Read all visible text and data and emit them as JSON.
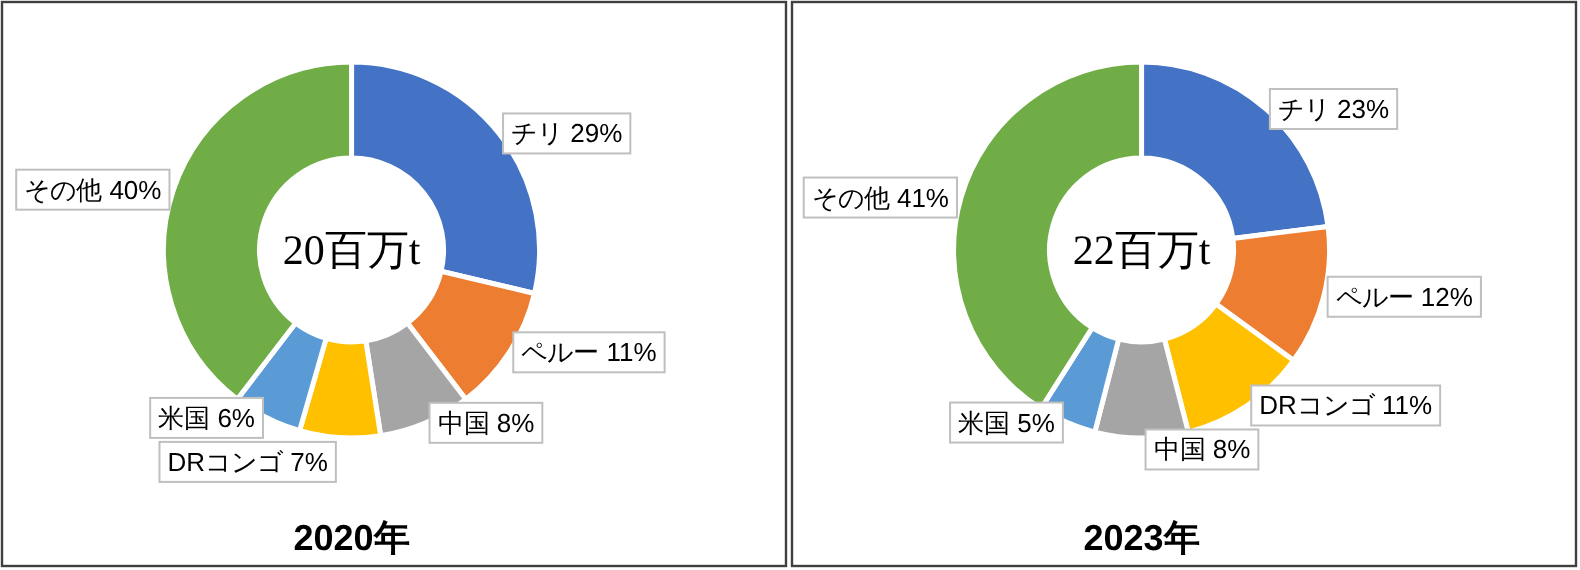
{
  "chart_data": [
    {
      "type": "donut",
      "title": "2020年",
      "categories": [
        "チリ",
        "ペルー",
        "中国",
        "DRコンゴ",
        "米国",
        "その他"
      ],
      "values": [
        29,
        11,
        8,
        7,
        6,
        40
      ],
      "value_labels": [
        "29%",
        "11%",
        "8%",
        "7%",
        "6%",
        "40%"
      ],
      "colors": [
        "#4472c4",
        "#ed7d31",
        "#a5a5a5",
        "#ffc000",
        "#5b9bd5",
        "#70ad47"
      ],
      "annotations": [
        "20百万t"
      ]
    },
    {
      "type": "donut",
      "title": "2023年",
      "categories": [
        "チリ",
        "ペルー",
        "DRコンゴ",
        "中国",
        "米国",
        "その他"
      ],
      "values": [
        23,
        12,
        11,
        8,
        5,
        41
      ],
      "value_labels": [
        "23%",
        "12%",
        "11%",
        "8%",
        "5%",
        "41%"
      ],
      "colors": [
        "#4472c4",
        "#ed7d31",
        "#ffc000",
        "#a5a5a5",
        "#5b9bd5",
        "#70ad47"
      ],
      "annotations": [
        "22百万t"
      ]
    }
  ]
}
